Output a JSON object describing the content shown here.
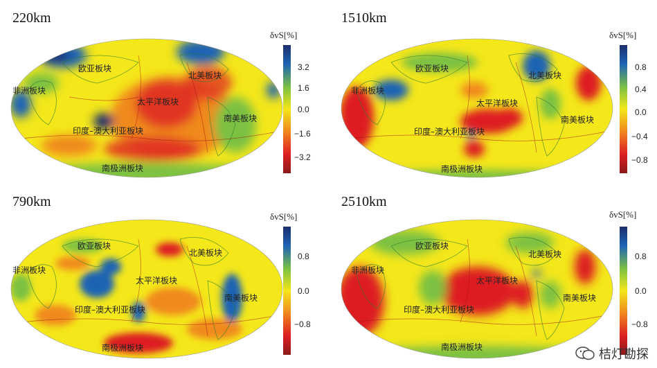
{
  "panels": [
    {
      "depth": "220km",
      "cb_title": "δvS[%]",
      "ticks": [
        "3.2",
        "1.6",
        "0.0",
        "−1.6",
        "−3.2"
      ],
      "plates": {
        "africa": "非洲板块",
        "eurasia": "欧亚板块",
        "pacific": "太平洋板块",
        "indo_australia": "印度–澳大利亚板块",
        "north_america": "北美板块",
        "south_america": "南美板块",
        "antarctic": "南极洲板块"
      }
    },
    {
      "depth": "1510km",
      "cb_title": "δvS[%]",
      "ticks": [
        "0.8",
        "0.4",
        "0.0",
        "−0.4",
        "−0.8"
      ],
      "plates": {
        "africa": "非洲板块",
        "eurasia": "欧亚板块",
        "pacific": "太平洋板块",
        "indo_australia": "印度–澳大利亚板块",
        "north_america": "北美板块",
        "south_america": "南美板块",
        "antarctic": "南极洲板块"
      }
    },
    {
      "depth": "790km",
      "cb_title": "δvS[%]",
      "ticks": [
        "0.8",
        "0.0",
        "−0.8"
      ],
      "plates": {
        "africa": "非洲板块",
        "eurasia": "欧亚板块",
        "pacific": "太平洋板块",
        "indo_australia": "印度–澳大利亚板块",
        "north_america": "北美板块",
        "south_america": "南美板块",
        "antarctic": "南极洲板块"
      }
    },
    {
      "depth": "2510km",
      "cb_title": "δvS[%]",
      "ticks": [
        "0.8",
        "0.0",
        "−0.8"
      ],
      "plates": {
        "africa": "非洲板块",
        "eurasia": "欧亚板块",
        "pacific": "太平洋板块",
        "indo_australia": "印度–澳大利亚板块",
        "north_america": "北美板块",
        "south_america": "南美板块",
        "antarctic": "南极洲板块"
      }
    }
  ],
  "watermark": {
    "text": "桔灯勘探",
    "icon": "wechat-icon"
  },
  "colors": {
    "yellow": "#f4e71a",
    "red": "#dd1f22",
    "orange": "#f08a1e",
    "green": "#7cc142",
    "blue": "#1e64b4",
    "dark_red": "#8b1a1a",
    "dark_blue": "#1b2e6e"
  }
}
